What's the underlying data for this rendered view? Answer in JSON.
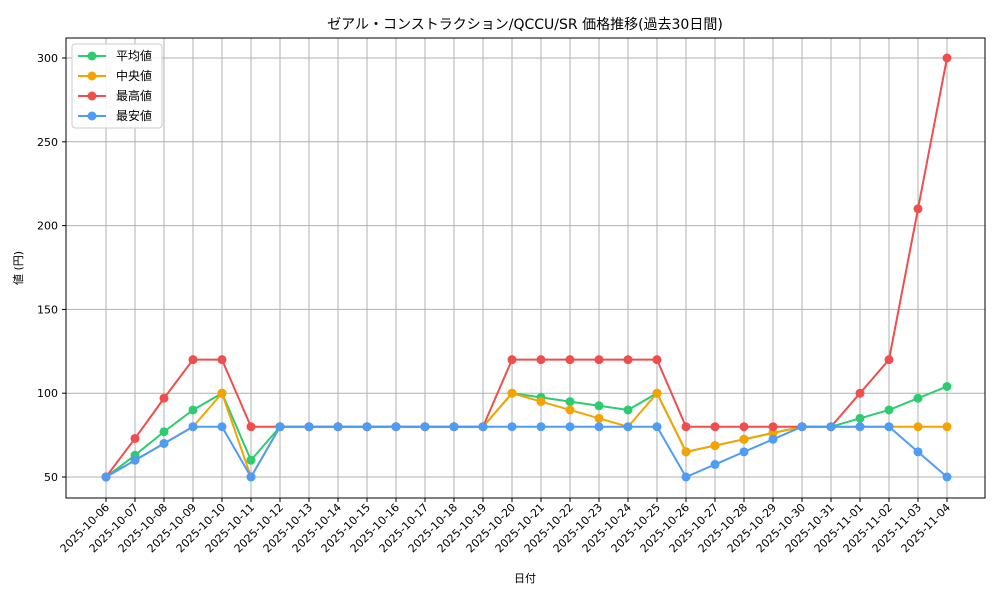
{
  "chart_data": {
    "type": "line",
    "title": "ゼアル・コンストラクション/QCCU/SR 価格推移(過去30日間)",
    "xlabel": "日付",
    "ylabel": "値 (円)",
    "ylim": [
      38,
      312
    ],
    "yticks": [
      50,
      100,
      150,
      200,
      250,
      300
    ],
    "grid": true,
    "legend_position": "upper left",
    "categories": [
      "2025-10-06",
      "2025-10-07",
      "2025-10-08",
      "2025-10-09",
      "2025-10-10",
      "2025-10-11",
      "2025-10-12",
      "2025-10-13",
      "2025-10-14",
      "2025-10-15",
      "2025-10-16",
      "2025-10-17",
      "2025-10-18",
      "2025-10-19",
      "2025-10-20",
      "2025-10-21",
      "2025-10-22",
      "2025-10-23",
      "2025-10-24",
      "2025-10-25",
      "2025-10-26",
      "2025-10-27",
      "2025-10-28",
      "2025-10-29",
      "2025-10-30",
      "2025-10-31",
      "2025-11-01",
      "2025-11-02",
      "2025-11-03",
      "2025-11-04"
    ],
    "series": [
      {
        "name": "平均値",
        "color": "#2ecc71",
        "values": [
          50,
          63,
          77,
          90,
          100,
          60,
          80,
          80,
          80,
          80,
          80,
          80,
          80,
          80,
          100,
          97.5,
          95,
          92.5,
          90,
          100,
          65,
          68.75,
          72.5,
          76.25,
          80,
          80,
          85,
          90,
          97,
          104
        ]
      },
      {
        "name": "中央値",
        "color": "#f5a300",
        "values": [
          50,
          60,
          70,
          80,
          100,
          50,
          80,
          80,
          80,
          80,
          80,
          80,
          80,
          80,
          100,
          95,
          90,
          85,
          80,
          100,
          65,
          68.75,
          72.5,
          76.25,
          80,
          80,
          80,
          80,
          80,
          80
        ]
      },
      {
        "name": "最高値",
        "color": "#f04e4e",
        "values": [
          50,
          73,
          97,
          120,
          120,
          80,
          80,
          80,
          80,
          80,
          80,
          80,
          80,
          80,
          120,
          120,
          120,
          120,
          120,
          120,
          80,
          80,
          80,
          80,
          80,
          80,
          100,
          120,
          210,
          300
        ]
      },
      {
        "name": "最安値",
        "color": "#4f9cf7",
        "values": [
          50,
          60,
          70,
          80,
          80,
          50,
          80,
          80,
          80,
          80,
          80,
          80,
          80,
          80,
          80,
          80,
          80,
          80,
          80,
          80,
          50,
          57.5,
          65,
          72.5,
          80,
          80,
          80,
          80,
          65,
          50
        ]
      }
    ]
  }
}
